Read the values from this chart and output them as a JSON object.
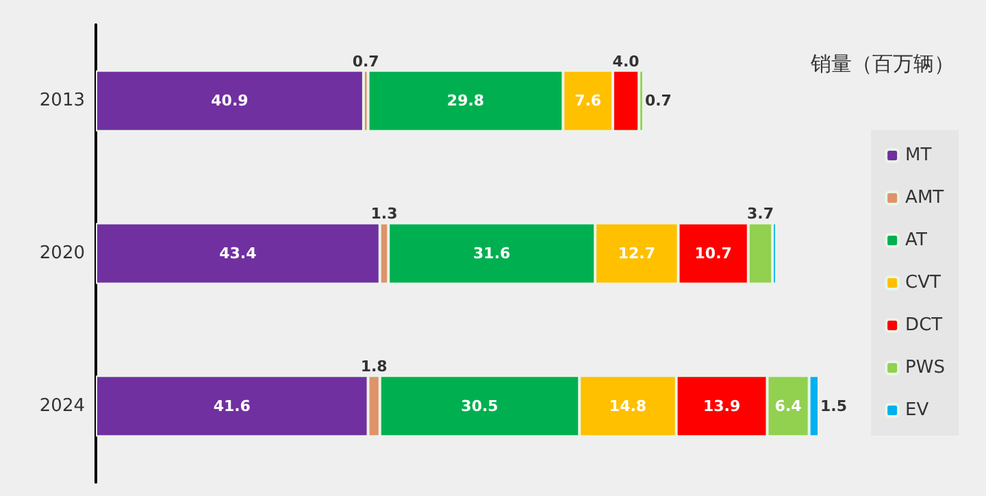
{
  "chart_data": {
    "type": "bar",
    "orientation": "horizontal",
    "stacked": true,
    "title": "销量（百万辆）",
    "categories": [
      "2013",
      "2020",
      "2024"
    ],
    "series": [
      {
        "name": "MT",
        "color": "#7030a0",
        "values": [
          40.9,
          43.4,
          41.6
        ],
        "value_labels": [
          "40.9",
          "43.4",
          "41.6"
        ]
      },
      {
        "name": "AMT",
        "color": "#e0926a",
        "values": [
          0.7,
          1.3,
          1.8
        ],
        "value_labels": [
          "0.7",
          "1.3",
          "1.8"
        ]
      },
      {
        "name": "AT",
        "color": "#00b050",
        "values": [
          29.8,
          31.6,
          30.5
        ],
        "value_labels": [
          "29.8",
          "31.6",
          "30.5"
        ]
      },
      {
        "name": "CVT",
        "color": "#ffc000",
        "values": [
          7.6,
          12.7,
          14.8
        ],
        "value_labels": [
          "7.6",
          "12.7",
          "14.8"
        ]
      },
      {
        "name": "DCT",
        "color": "#ff0000",
        "values": [
          4.0,
          10.7,
          13.9
        ],
        "value_labels": [
          "4.0",
          "10.7",
          "13.9"
        ]
      },
      {
        "name": "PWS",
        "color": "#92d050",
        "values": [
          0.7,
          3.7,
          6.4
        ],
        "value_labels": [
          "0.7",
          "3.7",
          "6.4"
        ]
      },
      {
        "name": "EV",
        "color": "#00b0f0",
        "values": [
          null,
          0.6,
          1.5
        ],
        "value_labels": [
          null,
          null,
          "1.5"
        ]
      }
    ],
    "legend": "right",
    "tick_labels": "y"
  }
}
